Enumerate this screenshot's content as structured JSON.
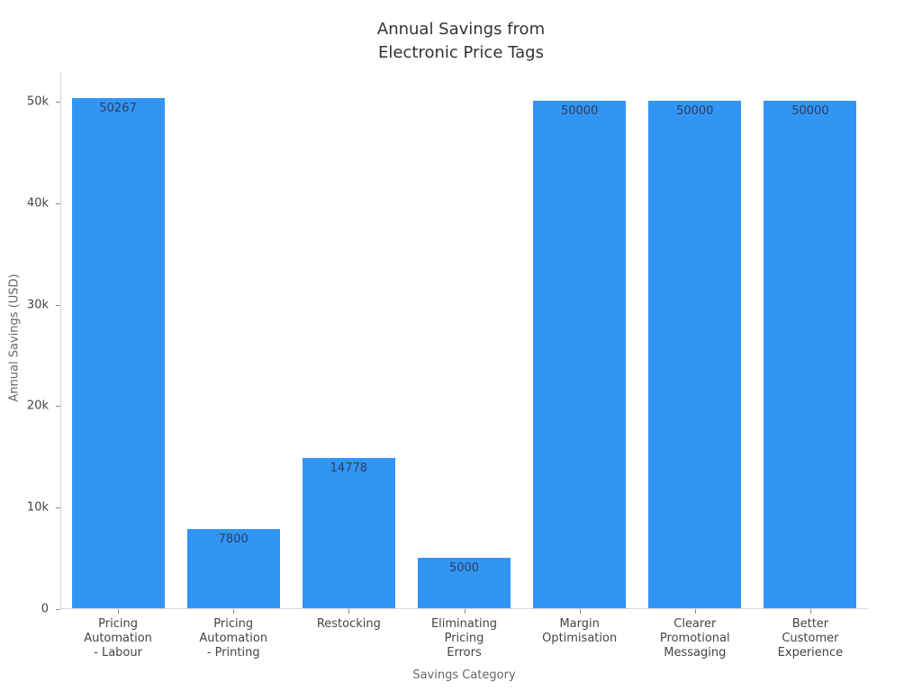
{
  "chart_data": {
    "type": "bar",
    "title": "Annual Savings from\nElectronic Price Tags",
    "xlabel": "Savings Category",
    "ylabel": "Annual Savings (USD)",
    "categories": [
      "Pricing\nAutomation\n- Labour",
      "Pricing\nAutomation\n- Printing",
      "Restocking",
      "Eliminating\nPricing\nErrors",
      "Margin\nOptimisation",
      "Clearer\nPromotional\nMessaging",
      "Better\nCustomer\nExperience"
    ],
    "values": [
      50267,
      7800,
      14778,
      5000,
      50000,
      50000,
      50000
    ],
    "bar_labels": [
      "50267",
      "7800",
      "14778",
      "5000",
      "50000",
      "50000",
      "50000"
    ],
    "yticks": [
      {
        "value": 0,
        "label": "0"
      },
      {
        "value": 10000,
        "label": "10k"
      },
      {
        "value": 20000,
        "label": "20k"
      },
      {
        "value": 30000,
        "label": "30k"
      },
      {
        "value": 40000,
        "label": "40k"
      },
      {
        "value": 50000,
        "label": "50k"
      }
    ],
    "ylim": [
      0,
      52925
    ],
    "grid": false,
    "legend": "none",
    "colors": {
      "bar": "#3295f4",
      "axis_line": "#d9d9d9",
      "tick_mark": "#8c8c8c",
      "tick_label": "#444444",
      "axis_title": "#666666",
      "title": "#333333",
      "bar_value_label": "#2a3f5f",
      "background": "#ffffff"
    }
  }
}
